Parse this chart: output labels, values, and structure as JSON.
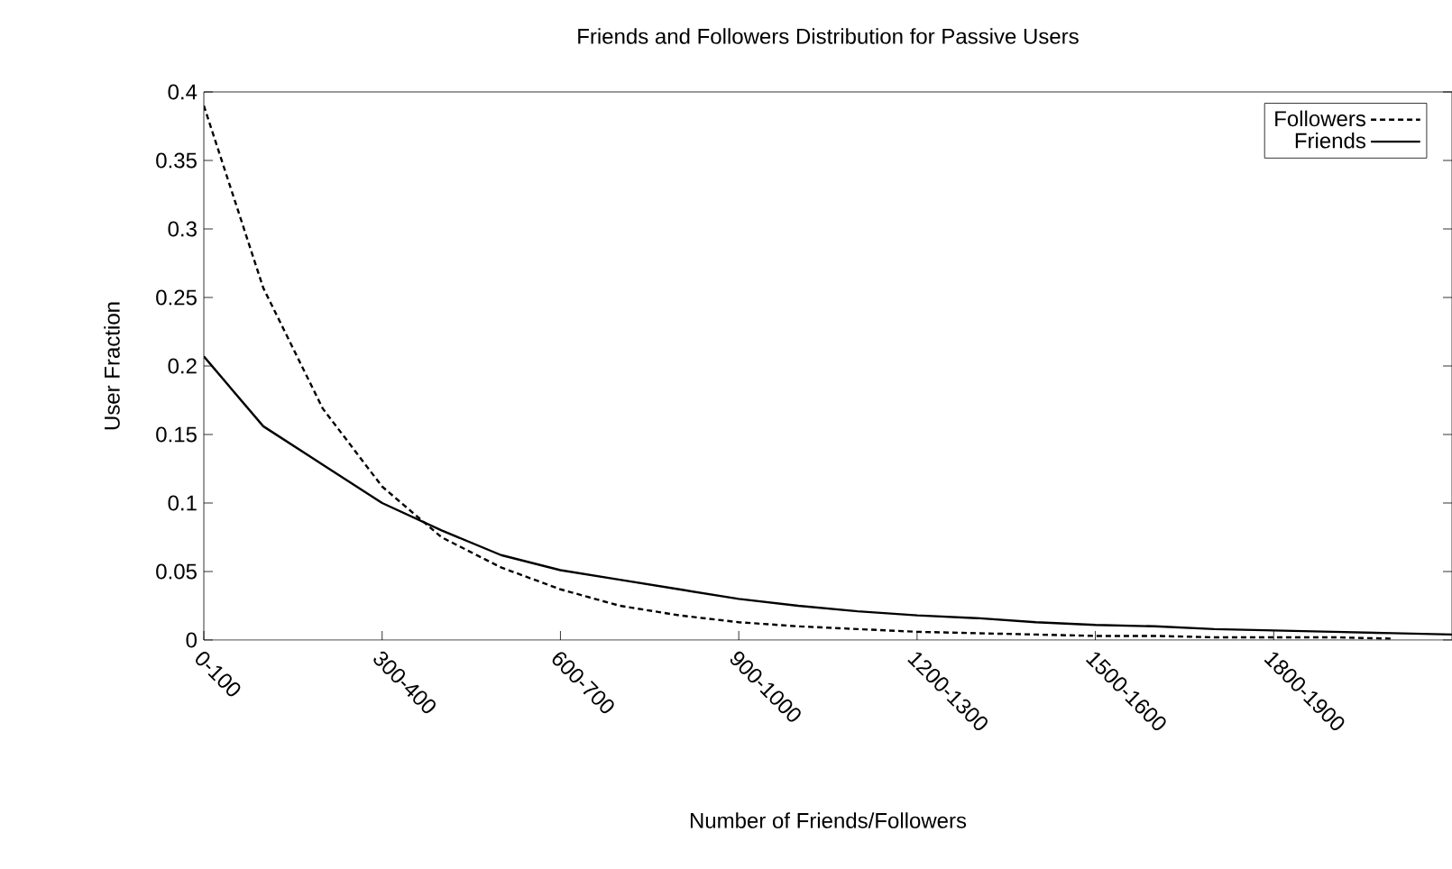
{
  "chart_data": {
    "type": "line",
    "title": "Friends and Followers Distribution for Passive Users",
    "xlabel": "Number of Friends/Followers",
    "ylabel": "User Fraction",
    "categories": [
      "0-100",
      null,
      null,
      "300-400",
      null,
      null,
      "600-700",
      null,
      null,
      "900-1000",
      null,
      null,
      "1200-1300",
      null,
      null,
      "1500-1600",
      null,
      null,
      "1800-1900",
      null,
      null,
      null
    ],
    "ylim": [
      0,
      0.4
    ],
    "yticks": [
      0,
      0.05,
      0.1,
      0.15,
      0.2,
      0.25,
      0.3,
      0.35,
      0.4
    ],
    "legend": "top right",
    "series": [
      {
        "name": "Followers",
        "color": "#000000",
        "line_style": "dashed",
        "values": [
          0.39,
          0.257,
          0.169,
          0.112,
          0.075,
          0.053,
          0.037,
          0.025,
          0.018,
          0.013,
          0.01,
          0.008,
          0.006,
          0.005,
          0.004,
          0.003,
          0.003,
          0.002,
          0.002,
          0.002,
          0.001,
          null
        ]
      },
      {
        "name": "Friends",
        "color": "#000000",
        "line_style": "solid",
        "values": [
          0.207,
          0.156,
          0.128,
          0.1,
          0.08,
          0.062,
          0.051,
          0.044,
          0.037,
          0.03,
          0.025,
          0.021,
          0.018,
          0.016,
          0.013,
          0.011,
          0.01,
          0.008,
          0.007,
          0.006,
          0.005,
          0.004
        ]
      }
    ]
  }
}
